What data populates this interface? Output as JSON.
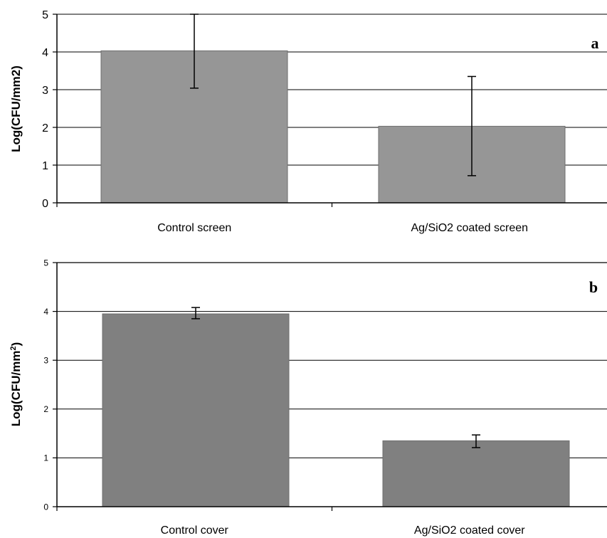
{
  "chart_data": [
    {
      "type": "bar",
      "panel_label": "a",
      "ylabel": "Log(CFU/mm2)",
      "ylim": [
        0,
        5
      ],
      "yticks": [
        0,
        1,
        2,
        3,
        4,
        5
      ],
      "grid": true,
      "categories": [
        "Control screen",
        "Ag/SiO2 coated screen"
      ],
      "values": [
        4.03,
        2.03
      ],
      "error_low": [
        3.04,
        0.72
      ],
      "error_high": [
        5.0,
        3.35
      ],
      "bar_color": "#969696"
    },
    {
      "type": "bar",
      "panel_label": "b",
      "ylabel_base": "Log(CFU/mm",
      "ylabel_sup": "2",
      "ylabel_end": ")",
      "ylim": [
        0,
        5
      ],
      "yticks": [
        0,
        1,
        2,
        3,
        4,
        5
      ],
      "grid": true,
      "categories": [
        "Control cover",
        "Ag/SiO2 coated cover"
      ],
      "values": [
        3.95,
        1.35
      ],
      "error_low": [
        3.85,
        1.21
      ],
      "error_high": [
        4.08,
        1.47
      ],
      "bar_color": "#808080"
    }
  ]
}
